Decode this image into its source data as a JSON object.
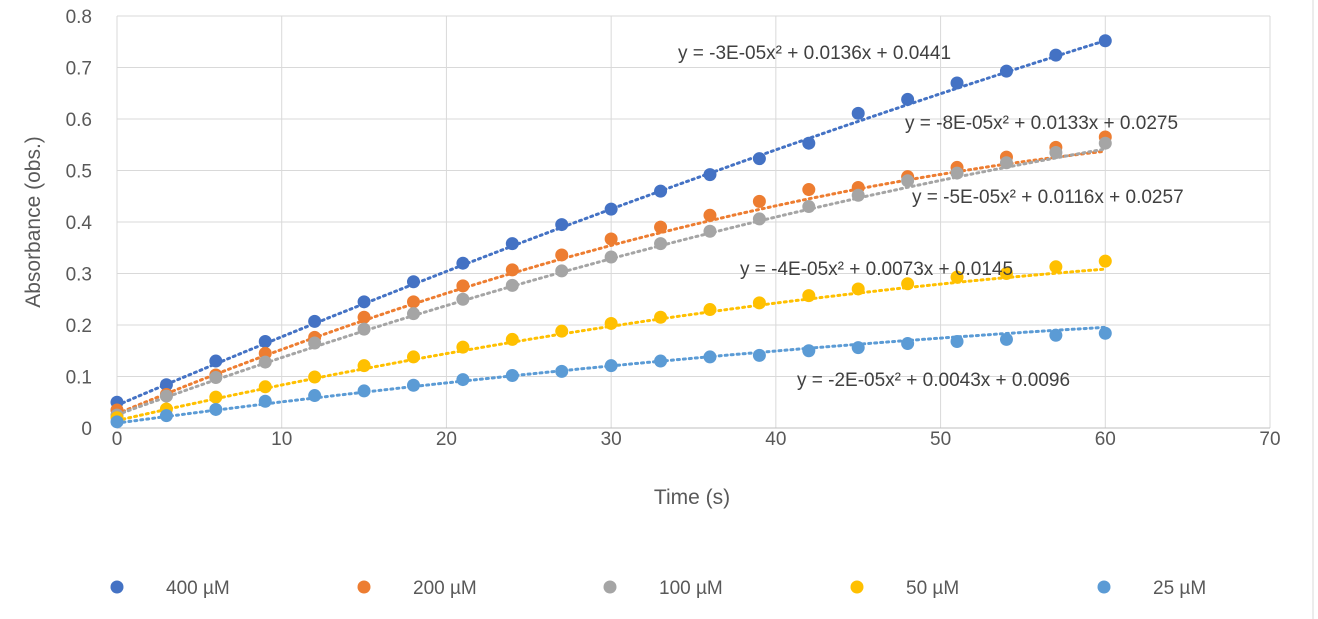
{
  "chart_data": {
    "type": "scatter",
    "title": "",
    "xlabel": "Time (s)",
    "ylabel": "Absorbance (obs.)",
    "xlim": [
      0,
      70
    ],
    "ylim": [
      0,
      0.8
    ],
    "xticks": [
      "0",
      "10",
      "20",
      "30",
      "40",
      "50",
      "60",
      "70"
    ],
    "yticks": [
      "0",
      "0.1",
      "0.2",
      "0.3",
      "0.4",
      "0.5",
      "0.6",
      "0.7",
      "0.8"
    ],
    "grid": true,
    "legend_position": "bottom",
    "x": [
      0,
      3,
      6,
      9,
      12,
      15,
      18,
      21,
      24,
      27,
      30,
      33,
      36,
      39,
      42,
      45,
      48,
      51,
      54,
      57,
      60
    ],
    "series": [
      {
        "name": "400 µM",
        "color": "#4472C4",
        "equation": "y = -3E-05x² + 0.0136x + 0.0441",
        "coef": [
          -3e-05,
          0.0136,
          0.0441
        ],
        "values": [
          0.05,
          0.084,
          0.13,
          0.168,
          0.207,
          0.245,
          0.284,
          0.32,
          0.358,
          0.395,
          0.425,
          0.46,
          0.492,
          0.523,
          0.553,
          0.611,
          0.638,
          0.67,
          0.693,
          0.724,
          0.752
        ]
      },
      {
        "name": "200 µM",
        "color": "#ED7D31",
        "equation": "y = -8E-05x² + 0.0133x + 0.0275",
        "coef": [
          -8e-05,
          0.0133,
          0.0275
        ],
        "values": [
          0.035,
          0.065,
          0.103,
          0.145,
          0.176,
          0.215,
          0.245,
          0.276,
          0.307,
          0.336,
          0.367,
          0.39,
          0.413,
          0.44,
          0.463,
          0.467,
          0.488,
          0.506,
          0.526,
          0.545,
          0.565
        ]
      },
      {
        "name": "100 µM",
        "color": "#A5A5A5",
        "equation": "y = -5E-05x² + 0.0116x + 0.0257",
        "coef": [
          -5e-05,
          0.0116,
          0.0257
        ],
        "values": [
          0.025,
          0.062,
          0.098,
          0.128,
          0.165,
          0.192,
          0.222,
          0.25,
          0.277,
          0.305,
          0.332,
          0.358,
          0.382,
          0.406,
          0.43,
          0.452,
          0.48,
          0.495,
          0.515,
          0.535,
          0.553
        ]
      },
      {
        "name": "50 µM",
        "color": "#FFC000",
        "equation": "y = -4E-05x² + 0.0073x + 0.0145",
        "coef": [
          -4e-05,
          0.0073,
          0.0145
        ],
        "values": [
          0.02,
          0.037,
          0.06,
          0.08,
          0.099,
          0.121,
          0.138,
          0.157,
          0.172,
          0.188,
          0.203,
          0.215,
          0.23,
          0.243,
          0.257,
          0.27,
          0.28,
          0.293,
          0.3,
          0.313,
          0.324
        ]
      },
      {
        "name": "25 µM",
        "color": "#5B9BD5",
        "equation": "y = -2E-05x² + 0.0043x + 0.0096",
        "coef": [
          -2e-05,
          0.0043,
          0.0096
        ],
        "values": [
          0.012,
          0.024,
          0.036,
          0.052,
          0.063,
          0.072,
          0.083,
          0.094,
          0.102,
          0.11,
          0.121,
          0.13,
          0.138,
          0.141,
          0.15,
          0.156,
          0.164,
          0.168,
          0.172,
          0.18,
          0.184
        ]
      }
    ]
  }
}
